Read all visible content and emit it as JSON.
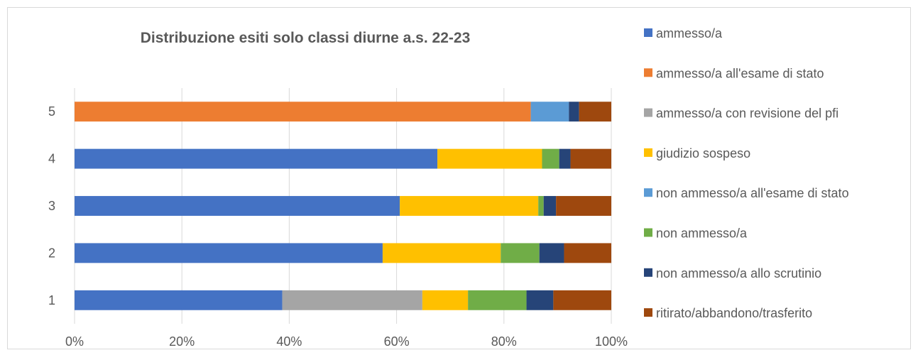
{
  "chart_data": {
    "type": "bar",
    "orientation": "horizontal",
    "stacked": "percent",
    "title": "Distribuzione esiti solo classi diurne a.s. 22-23",
    "xlabel": "",
    "ylabel": "",
    "xlim": [
      0,
      100
    ],
    "x_ticks": [
      "0%",
      "20%",
      "40%",
      "60%",
      "80%",
      "100%"
    ],
    "categories": [
      "1",
      "2",
      "3",
      "4",
      "5"
    ],
    "grid": "vertical",
    "legend_position": "right",
    "series": [
      {
        "name": "ammesso/a",
        "color": "#4472C4",
        "values": [
          38.7,
          57.4,
          60.6,
          67.6,
          0
        ]
      },
      {
        "name": "ammesso/a all'esame di stato",
        "color": "#ED7D31",
        "values": [
          0,
          0,
          0,
          0,
          85
        ]
      },
      {
        "name": "ammesso/a con revisione del pfi",
        "color": "#A5A5A5",
        "values": [
          26.1,
          0,
          0,
          0,
          0
        ]
      },
      {
        "name": "giudizio sospeso",
        "color": "#FFC000",
        "values": [
          8.5,
          22.0,
          25.8,
          19.5,
          0
        ]
      },
      {
        "name": "non ammesso/a all'esame di stato",
        "color": "#5B9BD5",
        "values": [
          0,
          0,
          0,
          0,
          7.1
        ]
      },
      {
        "name": "non ammesso/a",
        "color": "#70AD47",
        "values": [
          10.9,
          7.2,
          1.0,
          3.2,
          0
        ]
      },
      {
        "name": "non ammesso/a allo scrutinio",
        "color": "#264478",
        "values": [
          5.0,
          4.6,
          2.3,
          2.1,
          1.9
        ]
      },
      {
        "name": "ritirato/abbandono/trasferito",
        "color": "#9E480E",
        "values": [
          10.8,
          8.8,
          10.3,
          7.6,
          6.0
        ]
      }
    ]
  }
}
